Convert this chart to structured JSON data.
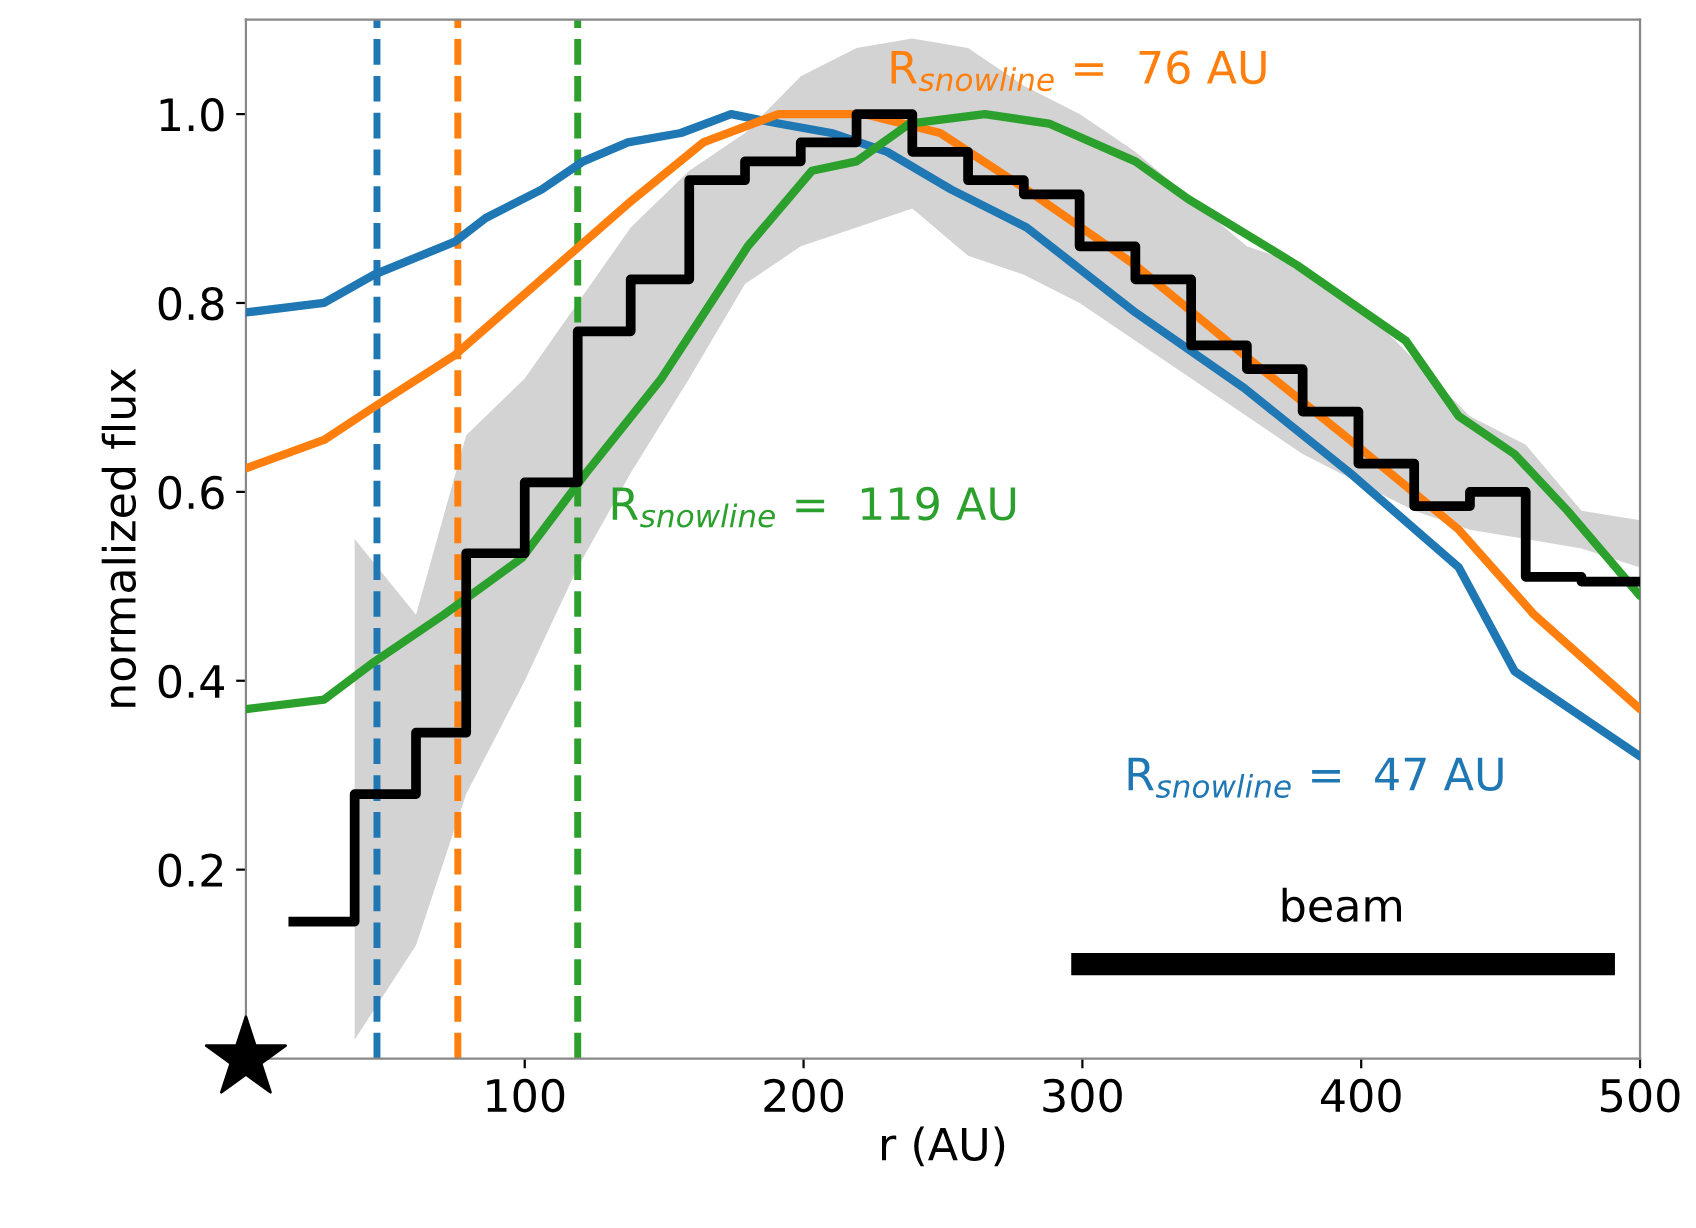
{
  "chart_data": {
    "type": "line",
    "xlabel": "r (AU)",
    "ylabel": "normalized flux",
    "xlim": [
      0,
      500
    ],
    "ylim": [
      0,
      1.1
    ],
    "xticks": [
      100,
      200,
      300,
      400,
      500
    ],
    "yticks": [
      0.2,
      0.4,
      0.6,
      0.8,
      {
        "value": 1.0,
        "label": "1.0"
      }
    ],
    "grid": false,
    "series": [
      {
        "color": "#1f77b4",
        "x": [
          0,
          28,
          46,
          75,
          86,
          106,
          121,
          137,
          156,
          174,
          191,
          210,
          230,
          253,
          280,
          319,
          358,
          396,
          435,
          455,
          500
        ],
        "values": [
          0.79,
          0.8,
          0.83,
          0.865,
          0.89,
          0.92,
          0.95,
          0.97,
          0.98,
          1.0,
          0.99,
          0.98,
          0.96,
          0.92,
          0.88,
          0.79,
          0.71,
          0.62,
          0.52,
          0.41,
          0.32
        ]
      },
      {
        "color": "#ff7f0e",
        "x": [
          0,
          28,
          46,
          75,
          106,
          137,
          164,
          191,
          222,
          249,
          280,
          319,
          358,
          396,
          435,
          462,
          500
        ],
        "values": [
          0.625,
          0.655,
          0.69,
          0.745,
          0.825,
          0.905,
          0.97,
          1.0,
          1.0,
          0.98,
          0.92,
          0.84,
          0.745,
          0.655,
          0.56,
          0.47,
          0.37
        ]
      },
      {
        "color": "#2ca02c",
        "x": [
          0,
          28,
          46,
          71,
          99,
          122,
          149,
          180,
          203,
          219,
          238,
          265,
          288,
          319,
          338,
          377,
          416,
          435,
          455,
          474,
          500
        ],
        "values": [
          0.37,
          0.38,
          0.42,
          0.47,
          0.53,
          0.62,
          0.72,
          0.86,
          0.94,
          0.95,
          0.99,
          1.0,
          0.99,
          0.95,
          0.91,
          0.84,
          0.76,
          0.68,
          0.64,
          0.58,
          0.49
        ]
      },
      {
        "type": "step",
        "color": "#000000",
        "x": [
          17,
          39,
          61,
          79,
          100,
          119,
          138,
          159,
          179,
          199,
          219,
          239,
          259,
          279,
          299,
          319,
          339,
          359,
          379,
          399,
          419,
          439,
          459,
          479,
          500
        ],
        "values": [
          0.145,
          0.28,
          0.345,
          0.535,
          0.61,
          0.77,
          0.825,
          0.93,
          0.95,
          0.97,
          1.0,
          0.96,
          0.93,
          0.915,
          0.86,
          0.825,
          0.755,
          0.73,
          0.685,
          0.63,
          0.585,
          0.6,
          0.51,
          0.505,
          0.505
        ],
        "lower": [
          null,
          0.02,
          0.12,
          0.28,
          0.4,
          0.52,
          0.62,
          0.72,
          0.82,
          0.86,
          0.88,
          0.9,
          0.85,
          0.83,
          0.8,
          0.76,
          0.72,
          0.68,
          0.64,
          0.61,
          0.58,
          0.56,
          0.55,
          0.54,
          0.52
        ],
        "upper": [
          null,
          0.55,
          0.47,
          0.66,
          0.72,
          0.8,
          0.88,
          0.94,
          0.98,
          1.04,
          1.07,
          1.08,
          1.07,
          1.03,
          1.0,
          0.96,
          0.91,
          0.86,
          0.84,
          0.8,
          0.74,
          0.68,
          0.65,
          0.58,
          0.57
        ]
      },
      {
        "type": "line",
        "color": "#000000",
        "x": [
          296,
          491
        ],
        "values": [
          0.1,
          0.1
        ]
      },
      {
        "type": "scatter",
        "color": "#000000",
        "marker": "star",
        "x": [
          0
        ],
        "values": [
          0
        ]
      }
    ],
    "ref_lines": [
      {
        "axis": "x",
        "value": 47,
        "color": "#1f77b4",
        "line_style": "dashed",
        "label": "R$_{snowline}$ =  47 AU"
      },
      {
        "axis": "x",
        "value": 76,
        "color": "#ff7f0e",
        "line_style": "dashed",
        "label": "R$_{snowline}$ =  76 AU"
      },
      {
        "axis": "x",
        "value": 119,
        "color": "#2ca02c",
        "line_style": "dashed",
        "label": "R$_{snowline}$ =  119 AU"
      }
    ],
    "annotations": [
      {
        "text": "beam",
        "x": 393,
        "y": 0.1
      }
    ]
  }
}
